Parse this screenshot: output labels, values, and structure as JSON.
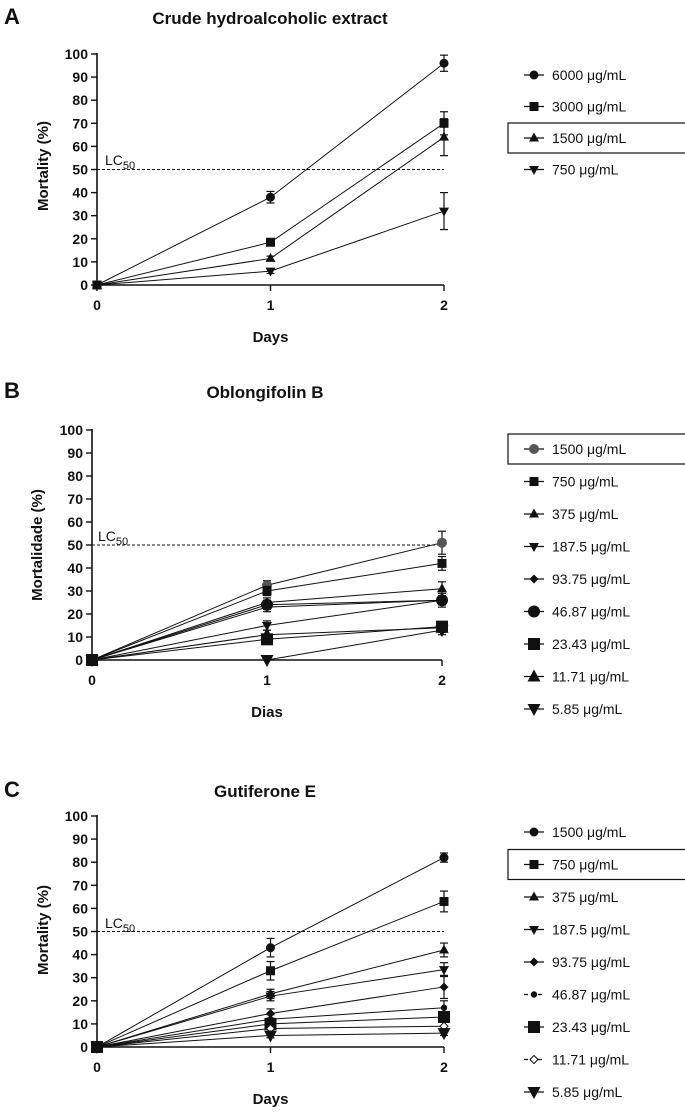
{
  "chart_data": [
    {
      "panel": "A",
      "type": "line",
      "title": "Crude hydroalcoholic extract",
      "xlabel": "Days",
      "ylabel": "Mortality (%)",
      "x": [
        0,
        1,
        2
      ],
      "x_ticks": [
        "0",
        "1",
        "2"
      ],
      "ylim": [
        0,
        100
      ],
      "y_ticks": [
        "0",
        "10",
        "20",
        "30",
        "40",
        "50",
        "60",
        "70",
        "80",
        "90",
        "100"
      ],
      "reference_line": {
        "label": "LC",
        "subscript": "50",
        "value": 50,
        "style": "dashed"
      },
      "legend_position": "right",
      "series": [
        {
          "name": "6000 μg/mL",
          "marker": "circle",
          "values": [
            0,
            38,
            96
          ],
          "errors": [
            0,
            2.5,
            3.5
          ]
        },
        {
          "name": "3000 μg/mL",
          "marker": "square",
          "values": [
            0,
            18.5,
            70
          ],
          "errors": [
            0,
            1,
            5
          ]
        },
        {
          "name": "1500 μg/mL",
          "marker": "triangle-up",
          "values": [
            0,
            11.5,
            64
          ],
          "errors": [
            0,
            1,
            8
          ],
          "boxed": true
        },
        {
          "name": "750 μg/mL",
          "marker": "triangle-down",
          "values": [
            0,
            6,
            32
          ],
          "errors": [
            0,
            1,
            8
          ]
        }
      ]
    },
    {
      "panel": "B",
      "type": "line",
      "title": "Oblongifolin B",
      "xlabel": "Dias",
      "ylabel": "Mortalidade (%)",
      "x": [
        0,
        1,
        2
      ],
      "x_ticks": [
        "0",
        "1",
        "2"
      ],
      "ylim": [
        0,
        100
      ],
      "y_ticks": [
        "0",
        "10",
        "20",
        "30",
        "40",
        "50",
        "60",
        "70",
        "80",
        "90",
        "100"
      ],
      "reference_line": {
        "label": "LC",
        "subscript": "50",
        "value": 50,
        "style": "dashed"
      },
      "legend_position": "right",
      "series": [
        {
          "name": "1500 μg/mL",
          "marker": "circle-gray",
          "values": [
            0,
            32.5,
            51
          ],
          "errors": [
            0,
            2,
            5
          ],
          "boxed": true
        },
        {
          "name": "750 μg/mL",
          "marker": "square",
          "values": [
            0,
            30,
            42
          ],
          "errors": [
            0,
            2,
            3
          ]
        },
        {
          "name": "375 μg/mL",
          "marker": "triangle-up",
          "values": [
            0,
            25,
            31
          ],
          "errors": [
            0,
            2,
            3
          ]
        },
        {
          "name": "187.5 μg/mL",
          "marker": "triangle-down",
          "values": [
            0,
            15,
            26
          ],
          "errors": [
            0,
            2,
            2
          ]
        },
        {
          "name": "93.75 μg/mL",
          "marker": "diamond",
          "values": [
            0,
            23,
            26
          ],
          "errors": [
            0,
            2,
            2
          ]
        },
        {
          "name": "46.87 μg/mL",
          "marker": "circle-large",
          "values": [
            0,
            24,
            26
          ],
          "errors": [
            0,
            2,
            3
          ]
        },
        {
          "name": "23.43 μg/mL",
          "marker": "square-large",
          "values": [
            0,
            9,
            14.5
          ],
          "errors": [
            0,
            2,
            2
          ]
        },
        {
          "name": "11.71 μg/mL",
          "marker": "triangle-up-large",
          "values": [
            0,
            11,
            14
          ],
          "errors": [
            0,
            2,
            2
          ]
        },
        {
          "name": "5.85 μg/mL",
          "marker": "triangle-down-large",
          "values": [
            0,
            0,
            13
          ],
          "errors": [
            0,
            0,
            2
          ]
        }
      ]
    },
    {
      "panel": "C",
      "type": "line",
      "title": "Gutiferone E",
      "xlabel": "Days",
      "ylabel": "Mortality (%)",
      "x": [
        0,
        1,
        2
      ],
      "x_ticks": [
        "0",
        "1",
        "2"
      ],
      "ylim": [
        0,
        100
      ],
      "y_ticks": [
        "0",
        "10",
        "20",
        "30",
        "40",
        "50",
        "60",
        "70",
        "80",
        "90",
        "100"
      ],
      "reference_line": {
        "label": "LC",
        "subscript": "50",
        "value": 50,
        "style": "dashed"
      },
      "legend_position": "right",
      "series": [
        {
          "name": "1500 μg/mL",
          "marker": "circle",
          "values": [
            0,
            43,
            82
          ],
          "errors": [
            0,
            4,
            2
          ]
        },
        {
          "name": "750 μg/mL",
          "marker": "square",
          "values": [
            0,
            33,
            63
          ],
          "errors": [
            0,
            4,
            4.5
          ],
          "boxed": true
        },
        {
          "name": "375 μg/mL",
          "marker": "triangle-up",
          "values": [
            0,
            23,
            42
          ],
          "errors": [
            0,
            2,
            3
          ]
        },
        {
          "name": "187.5 μg/mL",
          "marker": "triangle-down",
          "values": [
            0,
            22,
            33.5
          ],
          "errors": [
            0,
            2,
            3
          ]
        },
        {
          "name": "93.75 μg/mL",
          "marker": "diamond",
          "values": [
            0,
            14.5,
            26
          ],
          "errors": [
            0,
            2,
            5
          ]
        },
        {
          "name": "46.87 μg/mL",
          "marker": "circle-small",
          "values": [
            0,
            12,
            17
          ],
          "errors": [
            0,
            2,
            3
          ]
        },
        {
          "name": "23.43 μg/mL",
          "marker": "square-large",
          "values": [
            0,
            10,
            13
          ],
          "errors": [
            0,
            2,
            2
          ]
        },
        {
          "name": "11.71 μg/mL",
          "marker": "diamond-open",
          "values": [
            0,
            8,
            9
          ],
          "errors": [
            0,
            2,
            2
          ]
        },
        {
          "name": "5.85 μg/mL",
          "marker": "triangle-down-large",
          "values": [
            0,
            5,
            6
          ],
          "errors": [
            0,
            1,
            1
          ]
        }
      ]
    }
  ]
}
